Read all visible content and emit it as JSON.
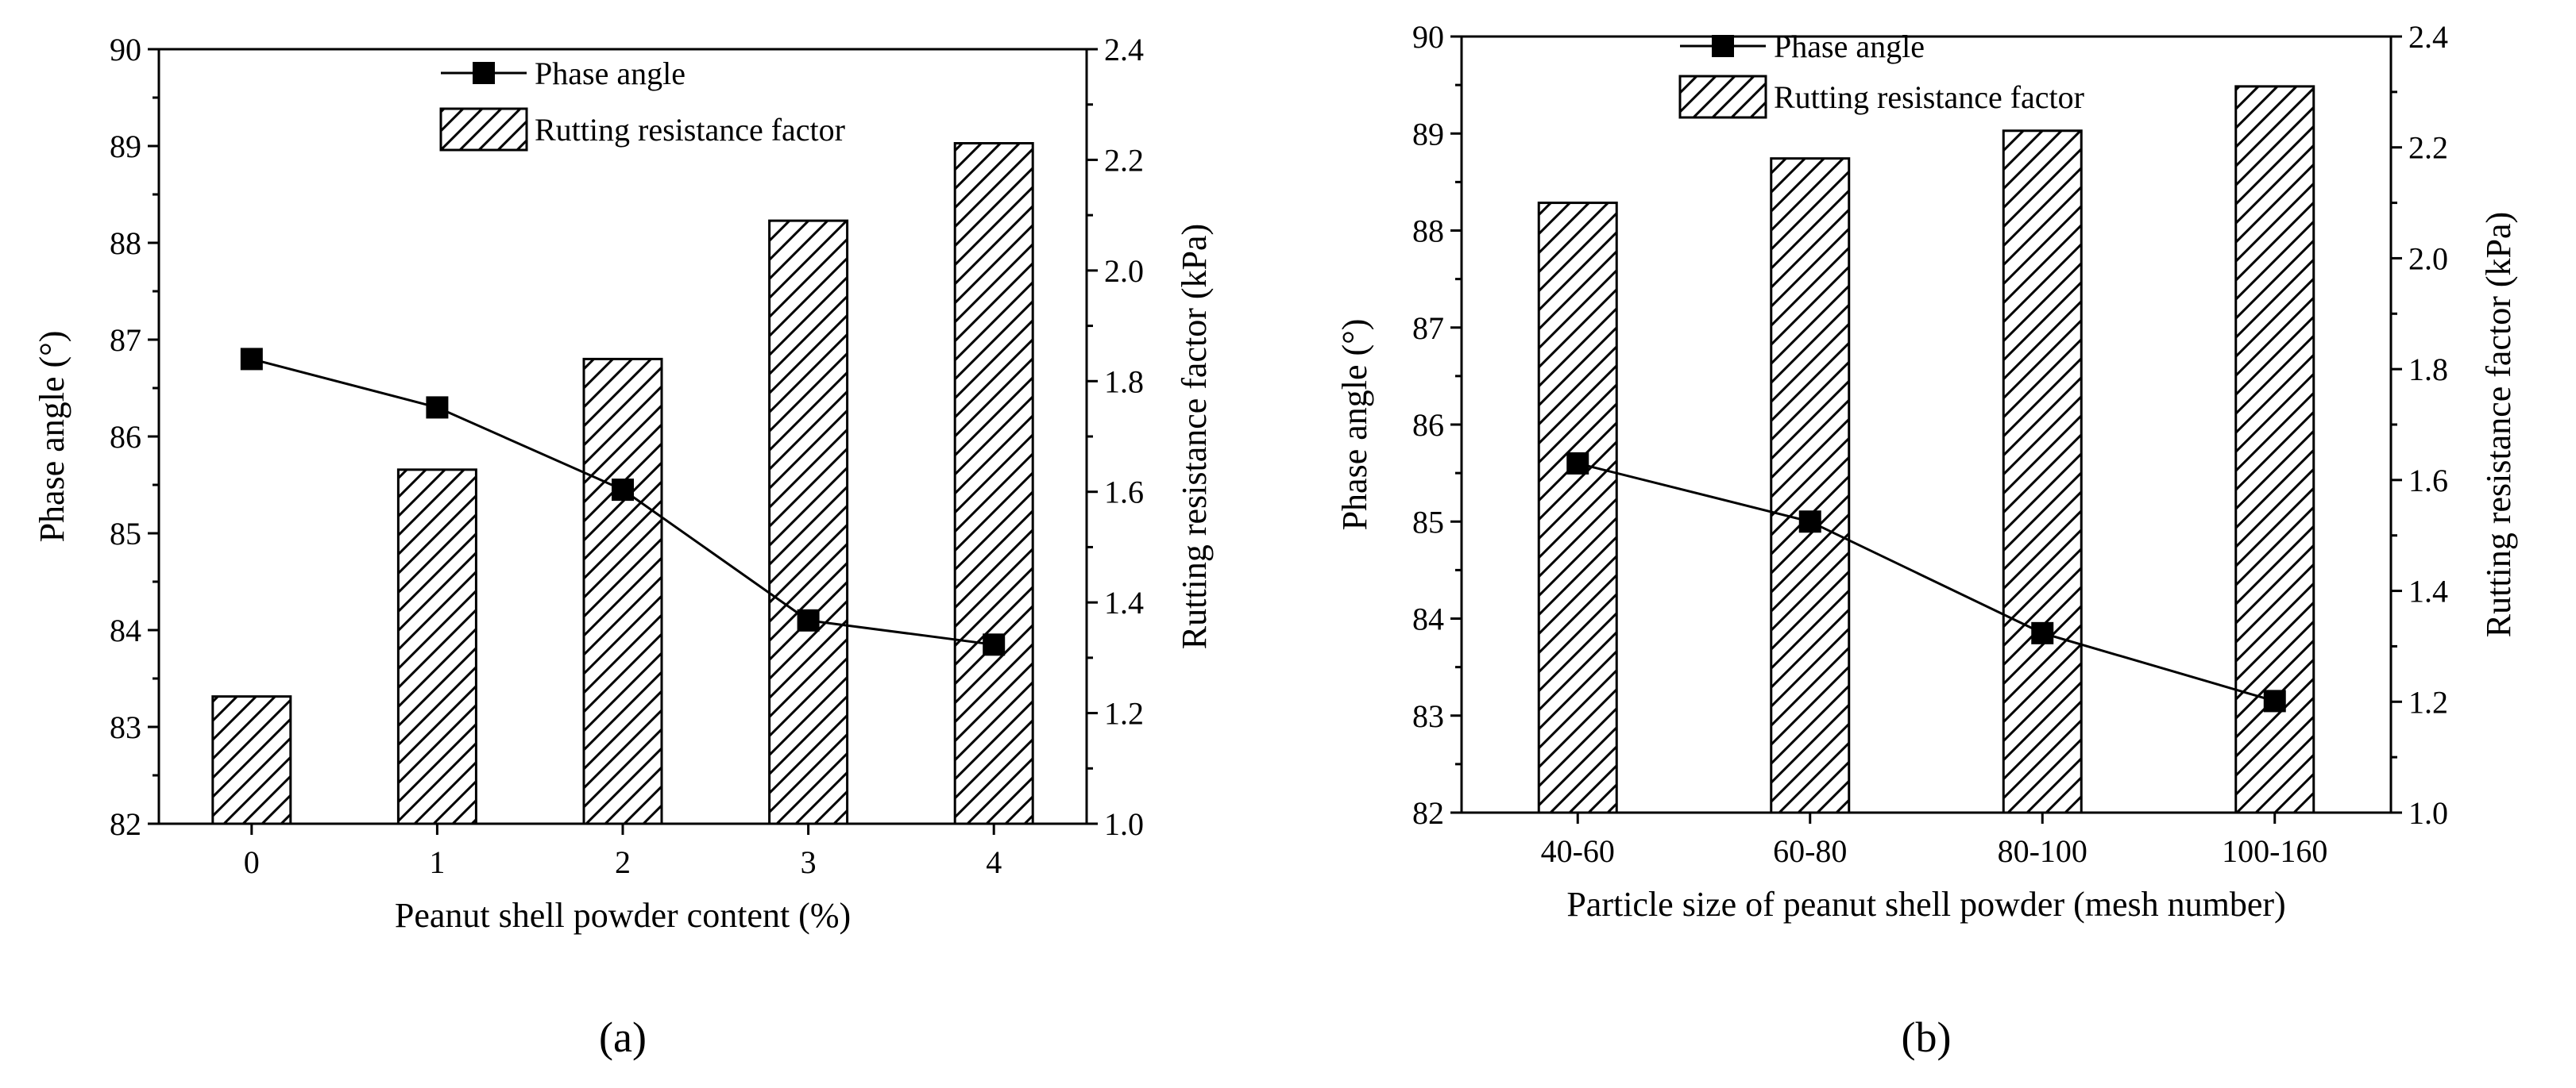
{
  "chart_data": [
    {
      "type": "bar",
      "panel_label": "(a)",
      "categories": [
        "0",
        "1",
        "2",
        "3",
        "4"
      ],
      "xlabel": "Peanut shell powder content (%)",
      "ylabel": "Phase angle (°)",
      "y2label": "Rutting resistance factor (kPa)",
      "ylim": [
        82,
        90
      ],
      "y2lim": [
        1.0,
        2.4
      ],
      "yticks": [
        "82",
        "83",
        "84",
        "85",
        "86",
        "87",
        "88",
        "89",
        "90"
      ],
      "y2ticks": [
        "1.0",
        "1.2",
        "1.4",
        "1.6",
        "1.8",
        "2.0",
        "2.2",
        "2.4"
      ],
      "legend_position": "top-center",
      "series": [
        {
          "name": "Phase angle",
          "type": "line",
          "axis": "left",
          "values": [
            86.8,
            86.3,
            85.45,
            84.1,
            83.85
          ]
        },
        {
          "name": "Rutting resistance factor",
          "type": "bar",
          "axis": "right",
          "values": [
            1.23,
            1.64,
            1.84,
            2.09,
            2.23
          ]
        }
      ]
    },
    {
      "type": "bar",
      "panel_label": "(b)",
      "categories": [
        "40-60",
        "60-80",
        "80-100",
        "100-160"
      ],
      "xlabel": "Particle size of peanut shell powder (mesh number)",
      "ylabel": "Phase angle (°)",
      "y2label": "Rutting resistance factor (kPa)",
      "ylim": [
        82,
        90
      ],
      "y2lim": [
        1.0,
        2.4
      ],
      "yticks": [
        "82",
        "83",
        "84",
        "85",
        "86",
        "87",
        "88",
        "89",
        "90"
      ],
      "y2ticks": [
        "1.0",
        "1.2",
        "1.4",
        "1.6",
        "1.8",
        "2.0",
        "2.2",
        "2.4"
      ],
      "legend_position": "top-center",
      "series": [
        {
          "name": "Phase angle",
          "type": "line",
          "axis": "left",
          "values": [
            85.6,
            85.0,
            83.85,
            83.15
          ]
        },
        {
          "name": "Rutting resistance factor",
          "type": "bar",
          "axis": "right",
          "values": [
            2.1,
            2.18,
            2.23,
            2.31
          ]
        }
      ]
    }
  ]
}
